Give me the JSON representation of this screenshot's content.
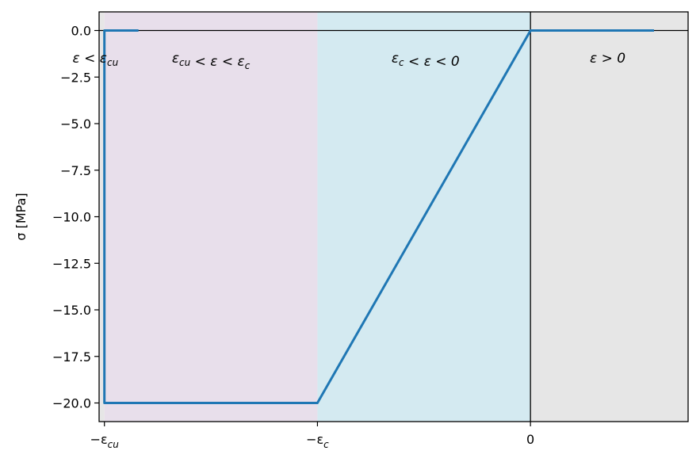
{
  "chart_data": {
    "type": "line",
    "title": "",
    "xlabel": "",
    "ylabel": "σ [MPa]",
    "ylim": [
      -21,
      1
    ],
    "y_ticks": [
      0.0,
      -2.5,
      -5.0,
      -7.5,
      -10.0,
      -12.5,
      -15.0,
      -17.5,
      -20.0
    ],
    "y_tick_labels": [
      "0.0",
      "−2.5",
      "−5.0",
      "−7.5",
      "−10.0",
      "−12.5",
      "−15.0",
      "−17.5",
      "−20.0"
    ],
    "x_ticks": [
      {
        "label": "−ε_cu",
        "base": "−ε",
        "sub": "cu"
      },
      {
        "label": "−ε_c",
        "base": "−ε",
        "sub": "c"
      },
      {
        "label": "0",
        "base": "0",
        "sub": ""
      }
    ],
    "x_range_ratio_to_eps_c": {
      "min": -2.025,
      "max": 0.74,
      "eps_cu": -2.0
    },
    "series": [
      {
        "color": "#1f77b4",
        "points": [
          {
            "x": "-1.84ε_c",
            "y": 0
          },
          {
            "x": "-ε_cu",
            "y": 0
          },
          {
            "x": "-ε_cu",
            "y": -20
          },
          {
            "x": "-ε_c",
            "y": -20
          },
          {
            "x": "0",
            "y": 0
          },
          {
            "x": "0.58ε_c",
            "y": 0
          }
        ]
      }
    ],
    "regions": [
      {
        "label": "ε < ε_cu",
        "color": "#e6e6e6"
      },
      {
        "label": "ε_cu < ε < ε_c",
        "color": "#e8dfeb"
      },
      {
        "label": "ε_c < ε < 0",
        "color": "#d4eaf1"
      },
      {
        "label": "ε > 0",
        "color": "#e6e6e6"
      }
    ],
    "axis_lines": {
      "horizontal_at_y": 0,
      "vertical_at_x": 0
    },
    "grid": false,
    "legend": "none"
  }
}
